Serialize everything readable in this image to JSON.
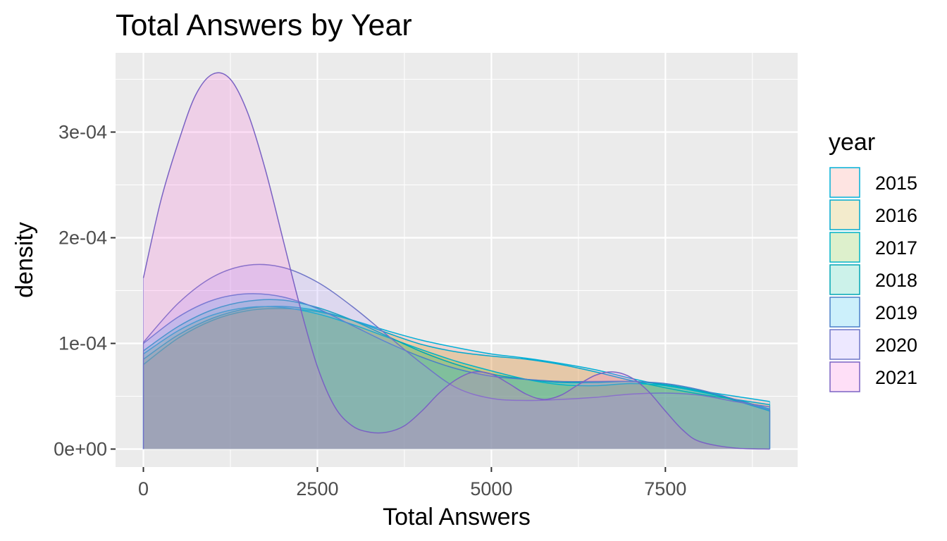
{
  "chart_data": {
    "type": "area",
    "subtype": "density",
    "title": "Total Answers by Year",
    "xlabel": "Total Answers",
    "ylabel": "density",
    "xlim": [
      -400,
      9400
    ],
    "ylim": [
      -1.7e-05,
      0.000375
    ],
    "x_ticks": [
      0,
      2500,
      5000,
      7500
    ],
    "x_tick_labels": [
      "0",
      "2500",
      "5000",
      "7500"
    ],
    "y_ticks": [
      0,
      0.0001,
      0.0002,
      0.0003
    ],
    "y_tick_labels": [
      "0e+00",
      "1e-04",
      "2e-04",
      "3e-04"
    ],
    "grid": true,
    "legend": {
      "title": "year",
      "position": "right"
    },
    "series": [
      {
        "name": "2015",
        "fill": "#F8766D",
        "stroke": "#00B0D8",
        "points": [
          [
            0,
            8e-05
          ],
          [
            500,
            0.000105
          ],
          [
            1000,
            0.000122
          ],
          [
            1500,
            0.000131
          ],
          [
            2000,
            0.000133
          ],
          [
            2500,
            0.00013
          ],
          [
            3000,
            0.000122
          ],
          [
            3500,
            0.000112
          ],
          [
            4000,
            0.000103
          ],
          [
            4500,
            9.6e-05
          ],
          [
            5000,
            9e-05
          ],
          [
            5500,
            8.6e-05
          ],
          [
            6000,
            8.1e-05
          ],
          [
            6500,
            7.5e-05
          ],
          [
            7000,
            6.7e-05
          ],
          [
            7500,
            6e-05
          ],
          [
            8000,
            5.5e-05
          ],
          [
            8500,
            5e-05
          ],
          [
            9000,
            4.5e-05
          ]
        ]
      },
      {
        "name": "2016",
        "fill": "#C49A00",
        "stroke": "#00A9CF",
        "points": [
          [
            0,
            8.5e-05
          ],
          [
            500,
            0.000108
          ],
          [
            1000,
            0.000124
          ],
          [
            1500,
            0.000133
          ],
          [
            2000,
            0.000135
          ],
          [
            2500,
            0.000131
          ],
          [
            3000,
            0.000122
          ],
          [
            3500,
            0.00011
          ],
          [
            4000,
            9.9e-05
          ],
          [
            4500,
            9.2e-05
          ],
          [
            5000,
            8.8e-05
          ],
          [
            5500,
            8.5e-05
          ],
          [
            6000,
            8e-05
          ],
          [
            6500,
            7.3e-05
          ],
          [
            7000,
            6.5e-05
          ],
          [
            7500,
            5.8e-05
          ],
          [
            8000,
            5.2e-05
          ],
          [
            8500,
            4.7e-05
          ],
          [
            9000,
            4.2e-05
          ]
        ]
      },
      {
        "name": "2017",
        "fill": "#53B400",
        "stroke": "#00B3C8",
        "points": [
          [
            0,
            9e-05
          ],
          [
            500,
            0.000112
          ],
          [
            1000,
            0.000127
          ],
          [
            1500,
            0.000134
          ],
          [
            2000,
            0.000134
          ],
          [
            2500,
            0.000128
          ],
          [
            3000,
            0.000118
          ],
          [
            3500,
            0.000106
          ],
          [
            4000,
            9.4e-05
          ],
          [
            4500,
            8.3e-05
          ],
          [
            5000,
            7.4e-05
          ],
          [
            5500,
            6.6e-05
          ],
          [
            6000,
            6.1e-05
          ],
          [
            6500,
            6e-05
          ],
          [
            7000,
            6.2e-05
          ],
          [
            7500,
            6e-05
          ],
          [
            8000,
            5.4e-05
          ],
          [
            8500,
            4.7e-05
          ],
          [
            9000,
            3.8e-05
          ]
        ]
      },
      {
        "name": "2018",
        "fill": "#00C094",
        "stroke": "#00A6B5",
        "points": [
          [
            0,
            9.3e-05
          ],
          [
            500,
            0.000116
          ],
          [
            1000,
            0.000132
          ],
          [
            1500,
            0.00014
          ],
          [
            2000,
            0.000141
          ],
          [
            2500,
            0.000134
          ],
          [
            3000,
            0.000122
          ],
          [
            3500,
            0.000107
          ],
          [
            4000,
            9.2e-05
          ],
          [
            4500,
            8e-05
          ],
          [
            5000,
            7.1e-05
          ],
          [
            5500,
            6.6e-05
          ],
          [
            6000,
            6.3e-05
          ],
          [
            6500,
            6.3e-05
          ],
          [
            7000,
            6.4e-05
          ],
          [
            7500,
            6.1e-05
          ],
          [
            8000,
            5.5e-05
          ],
          [
            8500,
            4.6e-05
          ],
          [
            9000,
            3.6e-05
          ]
        ]
      },
      {
        "name": "2019",
        "fill": "#00B6EB",
        "stroke": "#4A7FC8",
        "points": [
          [
            0,
            0.0001
          ],
          [
            500,
            0.000125
          ],
          [
            1000,
            0.000141
          ],
          [
            1500,
            0.000147
          ],
          [
            2000,
            0.000144
          ],
          [
            2500,
            0.000133
          ],
          [
            3000,
            0.000117
          ],
          [
            3500,
            0.000101
          ],
          [
            4000,
            8.7e-05
          ],
          [
            4500,
            7.6e-05
          ],
          [
            5000,
            6.9e-05
          ],
          [
            5500,
            6.6e-05
          ],
          [
            6000,
            6.4e-05
          ],
          [
            6500,
            6.4e-05
          ],
          [
            7000,
            6.4e-05
          ],
          [
            7500,
            6.2e-05
          ],
          [
            8000,
            5.6e-05
          ],
          [
            8500,
            4.7e-05
          ],
          [
            9000,
            3.7e-05
          ]
        ]
      },
      {
        "name": "2020",
        "fill": "#A58AFF",
        "stroke": "#6F76C7",
        "points": [
          [
            0,
            0.000101
          ],
          [
            500,
            0.000138
          ],
          [
            1000,
            0.000163
          ],
          [
            1500,
            0.000174
          ],
          [
            2000,
            0.000172
          ],
          [
            2500,
            0.000158
          ],
          [
            3000,
            0.000135
          ],
          [
            3500,
            0.000108
          ],
          [
            4000,
            8.1e-05
          ],
          [
            4500,
            5.8e-05
          ],
          [
            5000,
            4.8e-05
          ],
          [
            5500,
            4.6e-05
          ],
          [
            6000,
            4.7e-05
          ],
          [
            6500,
            4.9e-05
          ],
          [
            7000,
            5.2e-05
          ],
          [
            7500,
            5.3e-05
          ],
          [
            8000,
            5.1e-05
          ],
          [
            8500,
            4.5e-05
          ],
          [
            9000,
            4e-05
          ]
        ]
      },
      {
        "name": "2021",
        "fill": "#FB61D7",
        "stroke": "#7A62C3",
        "points": [
          [
            0,
            0.000162
          ],
          [
            250,
            0.000235
          ],
          [
            500,
            0.00029
          ],
          [
            750,
            0.000335
          ],
          [
            1000,
            0.000355
          ],
          [
            1250,
            0.00035
          ],
          [
            1500,
            0.000318
          ],
          [
            1750,
            0.000265
          ],
          [
            2000,
            0.0002
          ],
          [
            2250,
            0.000135
          ],
          [
            2500,
            7.8e-05
          ],
          [
            2750,
            4e-05
          ],
          [
            3000,
            2.2e-05
          ],
          [
            3250,
            1.6e-05
          ],
          [
            3500,
            1.6e-05
          ],
          [
            3750,
            2.2e-05
          ],
          [
            4000,
            3.6e-05
          ],
          [
            4250,
            5.3e-05
          ],
          [
            4500,
            6.6e-05
          ],
          [
            4750,
            7.3e-05
          ],
          [
            5000,
            7.1e-05
          ],
          [
            5250,
            6.2e-05
          ],
          [
            5500,
            5.2e-05
          ],
          [
            5750,
            4.7e-05
          ],
          [
            6000,
            5.1e-05
          ],
          [
            6250,
            6.1e-05
          ],
          [
            6500,
            7e-05
          ],
          [
            6750,
            7.3e-05
          ],
          [
            7000,
            6.8e-05
          ],
          [
            7250,
            5.5e-05
          ],
          [
            7500,
            3.6e-05
          ],
          [
            7750,
            1.8e-05
          ],
          [
            8000,
            7e-06
          ],
          [
            8500,
            1e-06
          ],
          [
            9000,
            0.0
          ]
        ]
      }
    ]
  }
}
